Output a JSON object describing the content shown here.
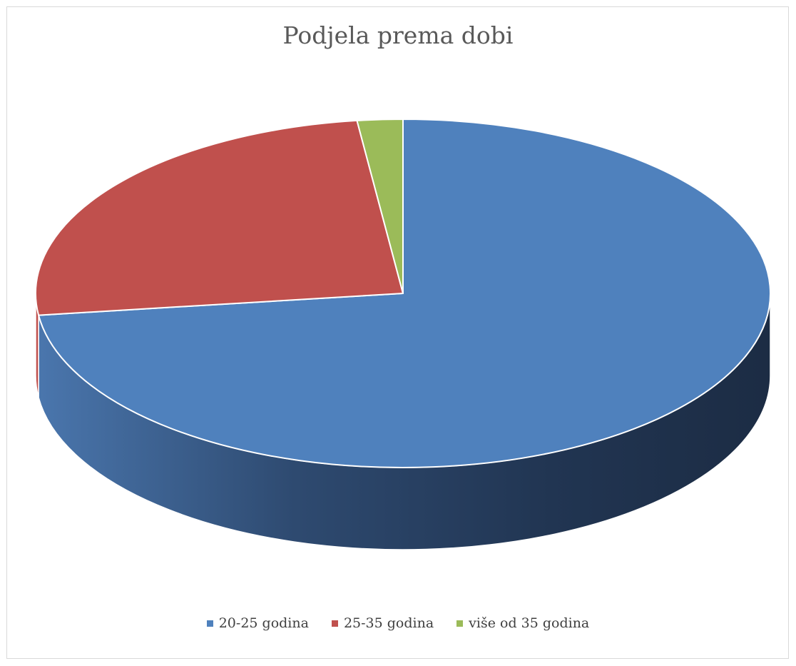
{
  "chart_data": {
    "type": "pie",
    "title": "Podjela prema dobi",
    "style": "3d",
    "legend_position": "bottom",
    "categories": [
      "20-25 godina",
      "25-35 godina",
      "više od 35 godina"
    ],
    "values": [
      73,
      25,
      2
    ],
    "colors": [
      "#4f81bd",
      "#c0504d",
      "#9bbb59"
    ]
  }
}
